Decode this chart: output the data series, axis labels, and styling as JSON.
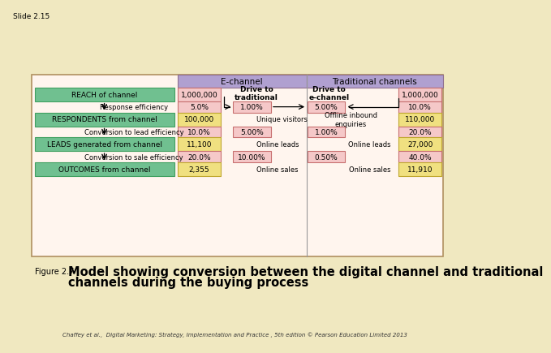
{
  "bg_color": "#f0e8c0",
  "slide_label": "Slide 2.15",
  "copyright_text": "Chaffey et al.,  Digital Marketing: Strategy, Implementation and Practice , 5th edition © Pearson Education Limited 2013",
  "box_pink_bg": "#f5c8c8",
  "box_pink_border": "#c87070",
  "green_box_bg": "#70c090",
  "green_box_border": "#40a060",
  "yellow_box_bg": "#f0e080",
  "yellow_box_border": "#c0a830",
  "header_bg": "#b0a0d0",
  "header_border": "#907090",
  "diagram_bg": "#fff5ee",
  "diagram_border": "#b09060",
  "fig_prefix": "Figure 2.7",
  "fig_main1": "Model showing conversion between the digital channel and traditional",
  "fig_main2": "channels during the buying process"
}
